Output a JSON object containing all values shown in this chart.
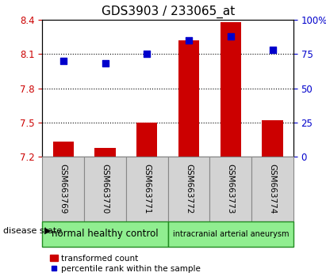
{
  "title": "GDS3903 / 233065_at",
  "samples": [
    "GSM663769",
    "GSM663770",
    "GSM663771",
    "GSM663772",
    "GSM663773",
    "GSM663774"
  ],
  "transformed_count": [
    7.33,
    7.28,
    7.5,
    8.22,
    8.38,
    7.52
  ],
  "percentile_rank": [
    70,
    68,
    75,
    85,
    88,
    78
  ],
  "bar_bottom": 7.2,
  "ylim_left": [
    7.2,
    8.4
  ],
  "ylim_right": [
    0,
    100
  ],
  "yticks_left": [
    7.2,
    7.5,
    7.8,
    8.1,
    8.4
  ],
  "yticks_right": [
    0,
    25,
    50,
    75,
    100
  ],
  "ytick_labels_right": [
    "0",
    "25",
    "50",
    "75",
    "100%"
  ],
  "hlines": [
    7.5,
    7.8,
    8.1
  ],
  "bar_color": "#cc0000",
  "dot_color": "#0000cc",
  "group1_label": "normal healthy control",
  "group2_label": "intracranial arterial aneurysm",
  "group_color": "#90ee90",
  "group1_samples": [
    0,
    1,
    2
  ],
  "group2_samples": [
    3,
    4,
    5
  ],
  "disease_state_label": "disease state",
  "legend_bar_label": "transformed count",
  "legend_dot_label": "percentile rank within the sample",
  "title_fontsize": 11,
  "tick_label_color_left": "#cc0000",
  "tick_label_color_right": "#0000cc",
  "bar_width": 0.5,
  "dot_size": 40,
  "sample_box_color": "#d3d3d3",
  "sample_box_edge": "#888888"
}
